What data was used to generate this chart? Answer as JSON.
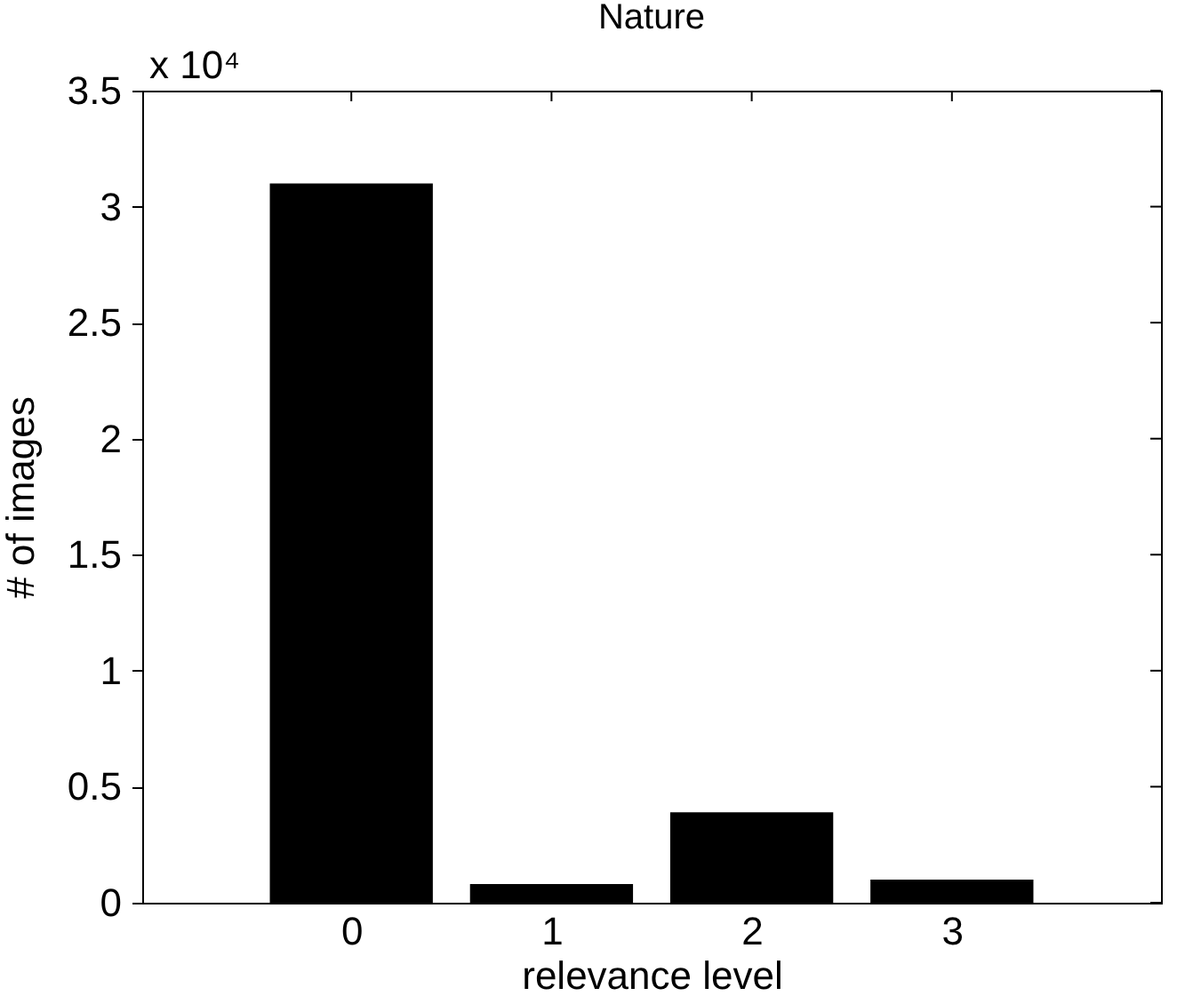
{
  "chart_data": {
    "type": "bar",
    "title": "Nature",
    "xlabel": "relevance level",
    "ylabel": "# of images",
    "annotations": [
      "x 10⁴"
    ],
    "x": [
      0,
      1,
      2,
      3
    ],
    "values": [
      3.1,
      0.08,
      0.39,
      0.1
    ],
    "color": "#000000",
    "xlim": [
      -1,
      4
    ],
    "xticks": [
      0,
      1,
      2,
      3
    ],
    "ylim": [
      0,
      3.5
    ],
    "yticks": [
      0,
      0.5,
      1,
      1.5,
      2,
      2.5,
      3,
      3.5
    ],
    "grid": false
  }
}
